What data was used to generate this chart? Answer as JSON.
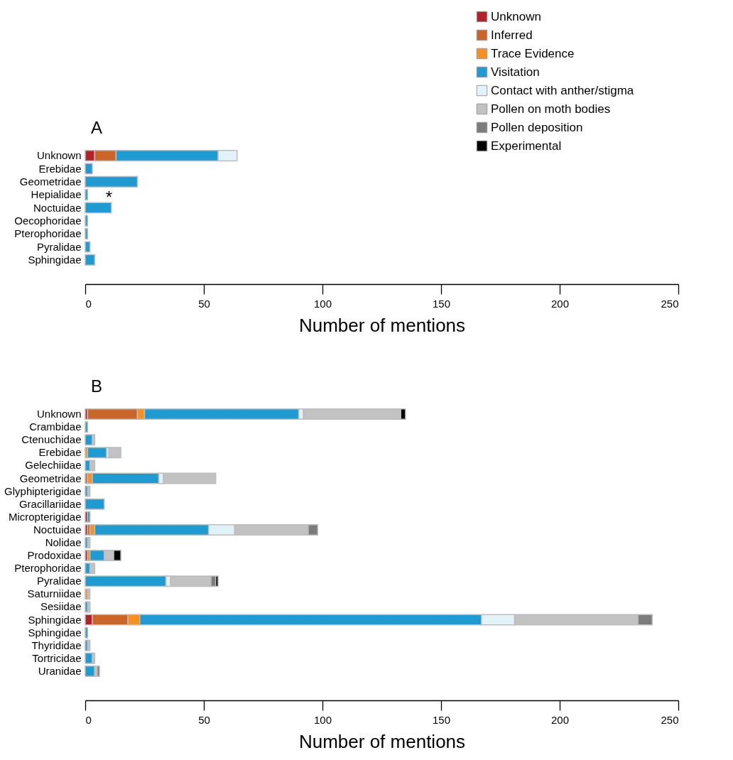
{
  "chart_data": [
    {
      "type": "bar",
      "title": "A",
      "orientation": "horizontal",
      "stacked": true,
      "xlabel": "Number of mentions",
      "xlim": [
        0,
        250
      ],
      "xticks": [
        0,
        50,
        100,
        150,
        200,
        250
      ],
      "legend": "top right",
      "grid": false,
      "categories": [
        "Unknown",
        "Erebidae",
        "Geometridae",
        "Hepialidae",
        "Noctuidae",
        "Oecophoridae",
        "Pterophoridae",
        "Pyralidae",
        "Sphingidae"
      ],
      "series": [
        {
          "name": "Unknown",
          "color": "#b5202a",
          "values": [
            4,
            null,
            null,
            null,
            null,
            null,
            null,
            null,
            null
          ]
        },
        {
          "name": "Inferred",
          "color": "#cc6628",
          "values": [
            9,
            null,
            null,
            null,
            null,
            null,
            null,
            null,
            null
          ]
        },
        {
          "name": "Trace Evidence",
          "color": "#f7901e",
          "values": [
            null,
            null,
            null,
            null,
            null,
            null,
            null,
            null,
            null
          ]
        },
        {
          "name": "Visitation",
          "color": "#1e9bd2",
          "values": [
            43,
            3,
            22,
            1,
            11,
            1,
            1,
            2,
            4
          ]
        },
        {
          "name": "Contact with anther/stigma",
          "color": "#e1f3f8",
          "values": [
            8,
            null,
            null,
            null,
            null,
            null,
            null,
            null,
            null
          ]
        },
        {
          "name": "Pollen on moth bodies",
          "color": "#c2c2c2",
          "values": [
            null,
            null,
            null,
            null,
            null,
            null,
            null,
            null,
            null
          ]
        },
        {
          "name": "Pollen deposition",
          "color": "#7c7c7c",
          "values": [
            null,
            null,
            null,
            null,
            null,
            null,
            null,
            null,
            null
          ]
        },
        {
          "name": "Experimental",
          "color": "#000000",
          "values": [
            null,
            null,
            null,
            null,
            null,
            null,
            null,
            null,
            null
          ]
        }
      ],
      "annotations": [
        {
          "text": "*",
          "x": 10,
          "y": "Hepialidae"
        }
      ]
    },
    {
      "type": "bar",
      "title": "B",
      "orientation": "horizontal",
      "stacked": true,
      "xlabel": "Number of mentions",
      "xlim": [
        0,
        250
      ],
      "xticks": [
        0,
        50,
        100,
        150,
        200,
        250
      ],
      "legend": false,
      "grid": false,
      "categories": [
        "Unknown",
        "Crambidae",
        "Ctenuchidae",
        "Erebidae",
        "Gelechiidae",
        "Geometridae",
        "Glyphipterigidae",
        "Gracillariidae",
        "Micropterigidae",
        "Noctuidae",
        "Nolidae",
        "Prodoxidae",
        "Pterophoridae",
        "Pyralidae",
        "Saturniidae",
        "Sesiidae",
        "Sphingidae",
        "Sphingidae ",
        "Thyrididae",
        "Tortricidae",
        "Uranidae"
      ],
      "series": [
        {
          "color": "#b5202a",
          "values": [
            1,
            null,
            null,
            null,
            null,
            null,
            null,
            null,
            1,
            1,
            null,
            1,
            null,
            null,
            null,
            null,
            3,
            null,
            null,
            null,
            null
          ]
        },
        {
          "color": "#cc6628",
          "values": [
            21,
            null,
            null,
            null,
            null,
            1,
            null,
            null,
            null,
            1,
            null,
            null,
            null,
            null,
            null,
            null,
            15,
            null,
            null,
            null,
            null
          ]
        },
        {
          "color": "#f7901e",
          "values": [
            3,
            null,
            null,
            1,
            null,
            2,
            null,
            null,
            null,
            2,
            null,
            1,
            null,
            null,
            1,
            null,
            5,
            null,
            null,
            null,
            null
          ]
        },
        {
          "color": "#1e9bd2",
          "values": [
            65,
            1,
            3,
            8,
            2,
            28,
            1,
            8,
            1,
            48,
            1,
            6,
            2,
            34,
            null,
            1,
            144,
            1,
            1,
            3,
            4
          ]
        },
        {
          "color": "#e1f3f8",
          "values": [
            2,
            null,
            null,
            1,
            null,
            2,
            null,
            null,
            null,
            11,
            null,
            null,
            null,
            2,
            null,
            null,
            14,
            null,
            null,
            null,
            null
          ]
        },
        {
          "color": "#c2c2c2",
          "values": [
            41,
            null,
            1,
            5,
            2,
            22,
            1,
            null,
            null,
            31,
            1,
            4,
            2,
            17,
            1,
            1,
            52,
            null,
            1,
            1,
            1
          ]
        },
        {
          "color": "#7c7c7c",
          "values": [
            null,
            null,
            null,
            null,
            null,
            null,
            null,
            null,
            null,
            4,
            null,
            null,
            null,
            2,
            null,
            null,
            6,
            null,
            null,
            null,
            1
          ]
        },
        {
          "color": "#000000",
          "values": [
            2,
            null,
            null,
            null,
            null,
            null,
            null,
            null,
            null,
            null,
            null,
            3,
            null,
            1,
            null,
            null,
            null,
            null,
            null,
            null,
            null
          ]
        }
      ]
    }
  ]
}
